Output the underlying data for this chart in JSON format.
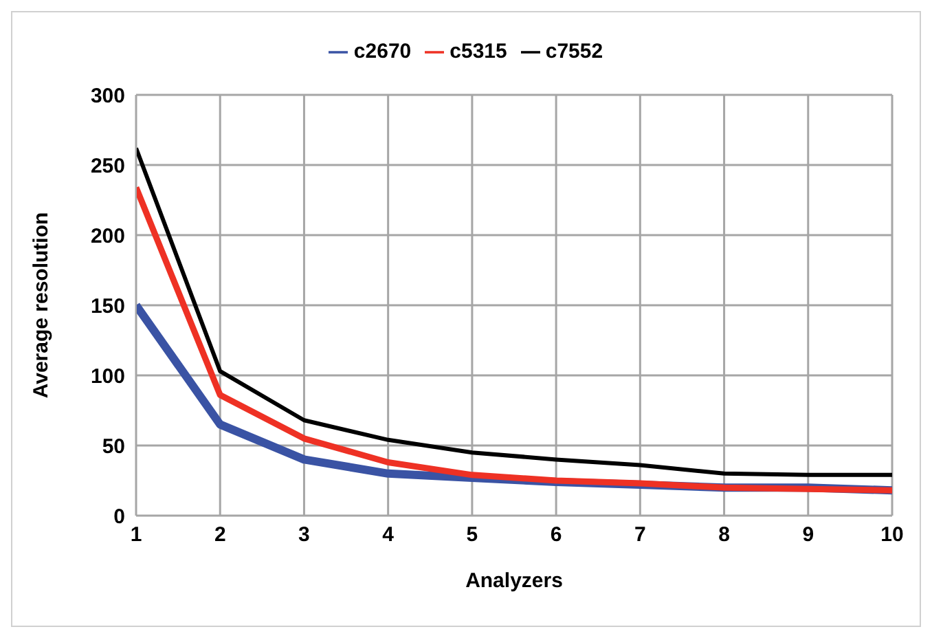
{
  "chart_data": {
    "type": "line",
    "xlabel": "Analyzers",
    "ylabel": "Average resolution",
    "x": [
      1,
      2,
      3,
      4,
      5,
      6,
      7,
      8,
      9,
      10
    ],
    "series": [
      {
        "name": "c2670",
        "color": "#3a53a4",
        "values": [
          150,
          65,
          40,
          30,
          27,
          24,
          22,
          20,
          20,
          18
        ]
      },
      {
        "name": "c5315",
        "color": "#ee3124",
        "values": [
          234,
          86,
          55,
          38,
          29,
          25,
          23,
          20,
          19,
          18
        ]
      },
      {
        "name": "c7552",
        "color": "#000000",
        "values": [
          262,
          103,
          68,
          54,
          45,
          40,
          36,
          30,
          29,
          29
        ]
      }
    ],
    "xlim": [
      1,
      10
    ],
    "xticks": [
      1,
      2,
      3,
      4,
      5,
      6,
      7,
      8,
      9,
      10
    ],
    "ylim": [
      0,
      300
    ],
    "yticks": [
      0,
      50,
      100,
      150,
      200,
      250,
      300
    ],
    "grid": true,
    "legend": "top",
    "marker": "none",
    "line_style": "solid"
  }
}
